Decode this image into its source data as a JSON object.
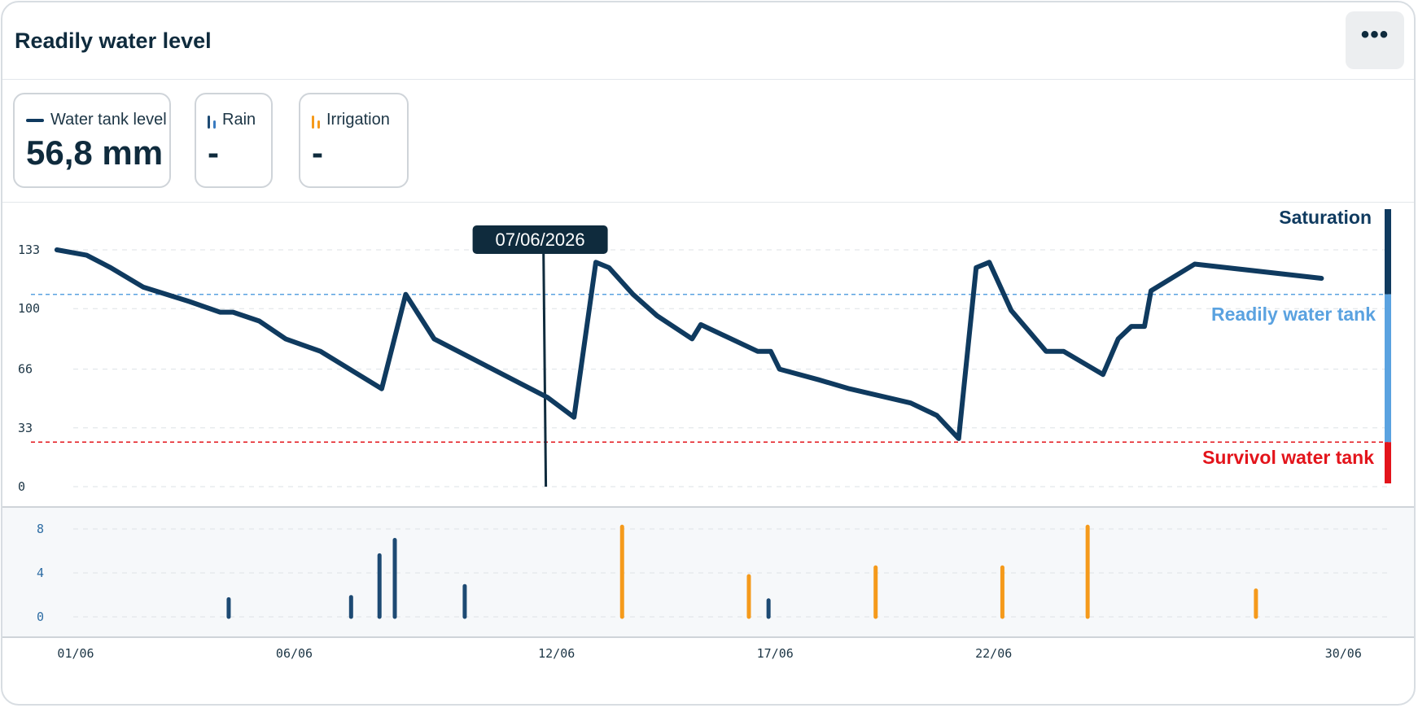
{
  "header": {
    "title": "Readily water level",
    "menu_label": "•••"
  },
  "stats": [
    {
      "label": "Water tank level",
      "value": "56,8 mm"
    },
    {
      "label": "Rain",
      "value": "-"
    },
    {
      "label": "Irrigation",
      "value": "-"
    }
  ],
  "colors": {
    "line": "#0f3a5f",
    "rain": "#1d4a73",
    "irrigation": "#f59a1b",
    "readily": "#5aa2e0",
    "survival": "#e3141b",
    "saturation": "#0f3a5f"
  },
  "tooltip": {
    "label": "07/06/2026",
    "x": 11.7
  },
  "chart_data": [
    {
      "type": "line",
      "title": "",
      "ylim": [
        0,
        133
      ],
      "yticks": [
        0,
        33,
        66,
        100,
        133
      ],
      "xlim": [
        1,
        31
      ],
      "xticks": [
        {
          "x": 1,
          "label": "01/06"
        },
        {
          "x": 6,
          "label": "06/06"
        },
        {
          "x": 12,
          "label": "12/06"
        },
        {
          "x": 17,
          "label": "17/06"
        },
        {
          "x": 22,
          "label": "22/06"
        },
        {
          "x": 30,
          "label": "30/06"
        }
      ],
      "thresholds": [
        {
          "name": "Readily water tank",
          "value": 108
        },
        {
          "name": "Survivol water tank",
          "value": 25
        }
      ],
      "saturation_label": "Saturation",
      "series": [
        {
          "name": "Water tank level",
          "points": [
            [
              0.57,
              133
            ],
            [
              1.25,
              130
            ],
            [
              1.8,
              123
            ],
            [
              2.55,
              112
            ],
            [
              3.6,
              104
            ],
            [
              4.3,
              98
            ],
            [
              4.6,
              98
            ],
            [
              5.2,
              93
            ],
            [
              5.8,
              83
            ],
            [
              6.6,
              76
            ],
            [
              8.0,
              55
            ],
            [
              8.55,
              108
            ],
            [
              9.2,
              83
            ],
            [
              11.8,
              50
            ],
            [
              12.4,
              39
            ],
            [
              12.9,
              126
            ],
            [
              13.2,
              123
            ],
            [
              13.75,
              108
            ],
            [
              14.3,
              96
            ],
            [
              15.1,
              83
            ],
            [
              15.3,
              91
            ],
            [
              16.6,
              76
            ],
            [
              16.9,
              76
            ],
            [
              17.1,
              66
            ],
            [
              18.0,
              60
            ],
            [
              18.7,
              55
            ],
            [
              20.1,
              47
            ],
            [
              20.7,
              40
            ],
            [
              21.2,
              27
            ],
            [
              21.6,
              123
            ],
            [
              21.9,
              126
            ],
            [
              22.4,
              99
            ],
            [
              23.2,
              76
            ],
            [
              23.6,
              76
            ],
            [
              24.5,
              63
            ],
            [
              24.85,
              83
            ],
            [
              25.15,
              90
            ],
            [
              25.45,
              90
            ],
            [
              25.6,
              110
            ],
            [
              26.6,
              125
            ],
            [
              29.5,
              117
            ]
          ]
        }
      ]
    },
    {
      "type": "bar",
      "ylim": [
        0,
        9
      ],
      "yticks": [
        0,
        4,
        8
      ],
      "xlim": [
        1,
        31
      ],
      "series": [
        {
          "name": "Rain",
          "points": [
            [
              4.5,
              1.6
            ],
            [
              7.3,
              1.8
            ],
            [
              7.95,
              5.6
            ],
            [
              8.3,
              7.0
            ],
            [
              9.9,
              2.8
            ],
            [
              16.85,
              1.5
            ]
          ]
        },
        {
          "name": "Irrigation",
          "points": [
            [
              13.5,
              8.2
            ],
            [
              16.4,
              3.7
            ],
            [
              19.3,
              4.5
            ],
            [
              22.2,
              4.5
            ],
            [
              24.15,
              8.2
            ],
            [
              28.0,
              2.4
            ]
          ]
        }
      ]
    }
  ]
}
